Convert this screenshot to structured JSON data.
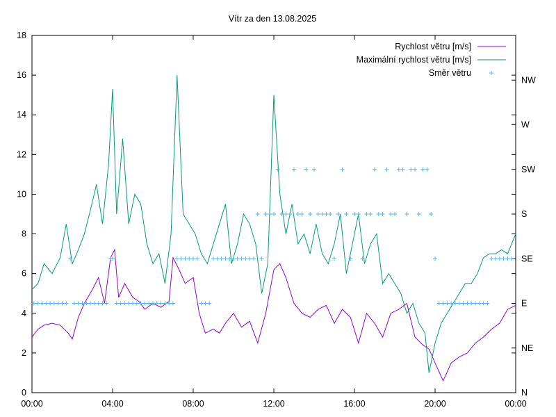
{
  "chart_data": {
    "type": "line",
    "title": "Vítr za den 13.08.2025",
    "xlabel": "",
    "ylabel": "",
    "x_ticks": [
      "00:00",
      "04:00",
      "08:00",
      "12:00",
      "16:00",
      "20:00",
      "00:00"
    ],
    "x_range_hours": [
      0,
      24
    ],
    "ylim": [
      0,
      18
    ],
    "y_ticks": [
      0,
      2,
      4,
      6,
      8,
      10,
      12,
      14,
      16,
      18
    ],
    "y2_ticks": [
      "N",
      "NE",
      "E",
      "SE",
      "S",
      "SW",
      "W",
      "NW"
    ],
    "y2_direction_degrees": [
      0,
      45,
      90,
      135,
      180,
      225,
      270,
      315
    ],
    "grid": false,
    "legend_placement": "top-right",
    "series": [
      {
        "name": "Rychlost větru [m/s]",
        "color": "#9400d3",
        "style": "line",
        "x": [
          0,
          0.3,
          0.6,
          1.0,
          1.4,
          1.8,
          2.0,
          2.3,
          2.6,
          3.0,
          3.3,
          3.6,
          3.9,
          4.1,
          4.3,
          4.6,
          5.0,
          5.3,
          5.6,
          6.0,
          6.4,
          6.8,
          7.0,
          7.3,
          7.6,
          8.0,
          8.3,
          8.6,
          9.0,
          9.3,
          9.6,
          10.0,
          10.4,
          10.8,
          11.2,
          11.6,
          12.0,
          12.3,
          12.6,
          13.0,
          13.4,
          13.8,
          14.2,
          14.6,
          15.0,
          15.4,
          15.8,
          16.2,
          16.6,
          17.0,
          17.4,
          17.8,
          18.2,
          18.6,
          19.0,
          19.4,
          19.7,
          20.0,
          20.4,
          20.8,
          21.2,
          21.6,
          22.0,
          22.4,
          22.8,
          23.2,
          23.6,
          24.0
        ],
        "values": [
          2.8,
          3.2,
          3.4,
          3.5,
          3.4,
          3.0,
          2.7,
          3.8,
          4.5,
          5.2,
          5.8,
          4.5,
          6.8,
          7.2,
          4.8,
          5.5,
          4.8,
          4.6,
          4.2,
          4.5,
          4.3,
          4.6,
          6.8,
          6.2,
          5.5,
          5.8,
          4.0,
          3.0,
          3.2,
          3.0,
          3.5,
          4.0,
          3.3,
          3.6,
          2.5,
          4.0,
          6.2,
          6.5,
          5.8,
          4.5,
          4.0,
          3.8,
          4.2,
          4.4,
          3.5,
          4.2,
          3.8,
          2.5,
          4.0,
          3.5,
          2.8,
          4.0,
          4.2,
          4.5,
          2.8,
          2.4,
          2.2,
          1.5,
          0.6,
          1.5,
          1.8,
          2.0,
          2.5,
          2.8,
          3.2,
          3.5,
          4.2,
          4.4
        ]
      },
      {
        "name": "Maximální rychlost větru [m/s]",
        "color": "#009e73",
        "style": "line",
        "x": [
          0,
          0.3,
          0.6,
          1.0,
          1.4,
          1.7,
          2.0,
          2.3,
          2.6,
          2.9,
          3.2,
          3.5,
          3.8,
          4.0,
          4.2,
          4.5,
          4.8,
          5.1,
          5.4,
          5.7,
          6.0,
          6.3,
          6.6,
          6.9,
          7.2,
          7.5,
          7.8,
          8.1,
          8.4,
          8.7,
          9.0,
          9.3,
          9.6,
          9.9,
          10.2,
          10.5,
          10.8,
          11.1,
          11.4,
          11.7,
          12.0,
          12.3,
          12.6,
          12.9,
          13.2,
          13.5,
          13.8,
          14.1,
          14.4,
          14.7,
          15.0,
          15.3,
          15.6,
          15.9,
          16.2,
          16.5,
          16.8,
          17.1,
          17.4,
          17.7,
          18.0,
          18.3,
          18.6,
          18.9,
          19.2,
          19.5,
          19.7,
          20.0,
          20.3,
          20.6,
          20.9,
          21.2,
          21.5,
          21.8,
          22.1,
          22.4,
          22.7,
          23.0,
          23.3,
          23.6,
          24.0
        ],
        "values": [
          5.2,
          5.5,
          6.5,
          6.0,
          6.8,
          8.5,
          6.5,
          7.2,
          8.0,
          9.2,
          10.5,
          8.5,
          11.5,
          15.3,
          9.0,
          12.8,
          8.5,
          10.0,
          9.5,
          7.5,
          6.5,
          7.0,
          5.5,
          8.0,
          16.0,
          9.0,
          8.5,
          8.0,
          7.0,
          6.5,
          7.5,
          8.5,
          9.5,
          6.5,
          7.5,
          9.0,
          8.5,
          7.5,
          5.0,
          6.5,
          15.0,
          10.0,
          8.0,
          9.5,
          7.5,
          8.0,
          7.0,
          8.5,
          7.0,
          6.5,
          7.5,
          9.0,
          6.0,
          7.5,
          9.0,
          6.5,
          7.5,
          8.0,
          5.5,
          6.0,
          5.5,
          5.0,
          4.0,
          4.5,
          3.5,
          3.0,
          1.0,
          2.5,
          3.5,
          4.0,
          4.5,
          5.0,
          5.5,
          5.5,
          6.0,
          6.8,
          7.0,
          7.0,
          7.2,
          7.0,
          8.0
        ]
      },
      {
        "name": "Směr větru",
        "color": "#56b4e9",
        "style": "points",
        "axis": "y2",
        "x": [
          0.1,
          0.3,
          0.5,
          0.7,
          0.9,
          1.1,
          1.3,
          1.5,
          1.7,
          1.9,
          2.1,
          2.3,
          2.5,
          2.7,
          2.9,
          3.1,
          3.3,
          3.5,
          3.7,
          3.9,
          4.0,
          4.2,
          4.4,
          4.6,
          4.8,
          5.0,
          5.2,
          5.4,
          5.6,
          5.8,
          6.0,
          6.2,
          6.4,
          6.6,
          6.8,
          7.0,
          7.2,
          7.4,
          7.6,
          7.8,
          8.0,
          8.2,
          8.4,
          8.6,
          8.8,
          9.0,
          9.2,
          9.4,
          9.6,
          9.8,
          10.0,
          10.2,
          10.4,
          10.6,
          10.8,
          11.0,
          11.2,
          11.4,
          11.6,
          11.8,
          12.0,
          12.2,
          12.4,
          12.6,
          12.8,
          13.0,
          13.2,
          13.4,
          13.6,
          13.8,
          14.0,
          14.2,
          14.4,
          14.6,
          14.8,
          15.0,
          15.2,
          15.4,
          15.6,
          15.8,
          16.0,
          16.2,
          16.4,
          16.6,
          16.8,
          17.0,
          17.2,
          17.4,
          17.6,
          17.8,
          18.0,
          18.2,
          18.4,
          18.6,
          18.8,
          19.0,
          19.2,
          19.4,
          19.6,
          19.8,
          20.0,
          20.2,
          20.4,
          20.6,
          20.8,
          21.0,
          21.2,
          21.4,
          21.6,
          21.8,
          22.0,
          22.2,
          22.4,
          22.6,
          22.8,
          23.0,
          23.2,
          23.4,
          23.6,
          23.8
        ],
        "values": [
          90,
          90,
          90,
          90,
          90,
          90,
          90,
          90,
          90,
          135,
          90,
          90,
          90,
          90,
          90,
          90,
          90,
          90,
          90,
          135,
          135,
          90,
          90,
          90,
          90,
          90,
          90,
          90,
          90,
          90,
          90,
          90,
          90,
          90,
          90,
          90,
          135,
          135,
          135,
          135,
          135,
          135,
          90,
          90,
          90,
          135,
          135,
          135,
          135,
          135,
          135,
          135,
          135,
          135,
          135,
          135,
          180,
          135,
          180,
          180,
          180,
          225,
          180,
          180,
          180,
          225,
          180,
          180,
          225,
          180,
          225,
          180,
          180,
          180,
          180,
          135,
          180,
          225,
          180,
          135,
          180,
          180,
          135,
          180,
          180,
          225,
          180,
          180,
          225,
          180,
          180,
          225,
          225,
          180,
          225,
          225,
          180,
          225,
          225,
          180,
          135,
          90,
          90,
          90,
          90,
          90,
          90,
          90,
          90,
          90,
          90,
          90,
          90,
          90,
          135,
          135,
          135,
          135,
          135,
          135
        ]
      }
    ]
  }
}
